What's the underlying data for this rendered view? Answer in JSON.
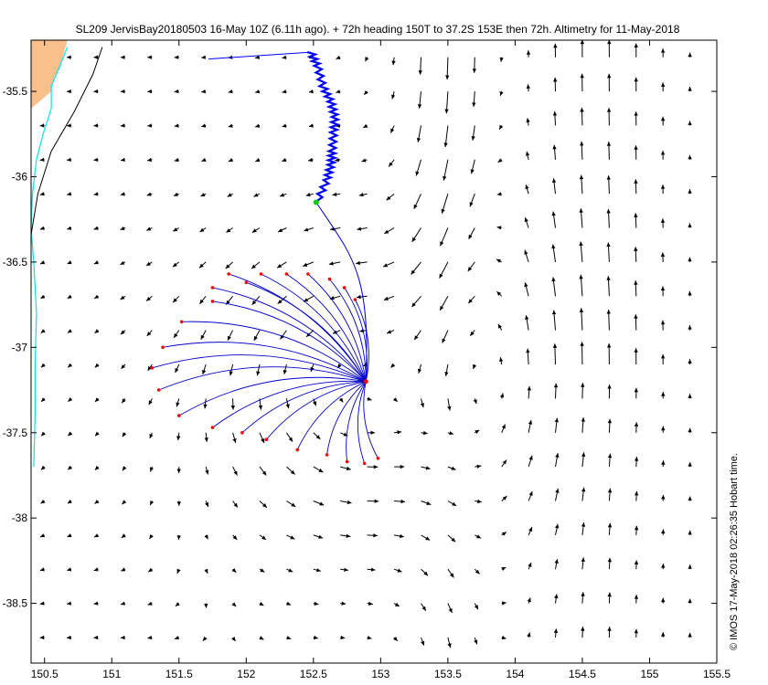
{
  "figure": {
    "title": "SL209 JervisBay20180503 16-May 10Z (6.11h ago). + 72h heading 150T to 37.2S 153E then 72h. Altimetry for 11-May-2018",
    "credit": "© IMOS 17-May-2018 02:26:35 Hobart time."
  },
  "chart_data": {
    "type": "map-vector-field",
    "title": "SL209 JervisBay20180503 16-May 10Z (6.11h ago). + 72h heading 150T to 37.2S 153E then 72h. Altimetry for 11-May-2018",
    "xlabel": "",
    "ylabel": "",
    "xlim": [
      150.4,
      155.5
    ],
    "ylim": [
      -38.85,
      -35.2
    ],
    "x_ticks": [
      150.5,
      151,
      151.5,
      152,
      152.5,
      153,
      153.5,
      154,
      154.5,
      155,
      155.5
    ],
    "x_tick_labels": [
      "150.5",
      "151",
      "151.5",
      "152",
      "152.5",
      "153",
      "153.5",
      "154",
      "154.5",
      "155",
      "155.5"
    ],
    "y_ticks": [
      -35.5,
      -36,
      -36.5,
      -37,
      -37.5,
      -38,
      -38.5
    ],
    "y_tick_labels": [
      "-35.5",
      "-36",
      "-36.5",
      "-37",
      "-37.5",
      "-38",
      "-38.5"
    ],
    "grid": false,
    "colors": {
      "land": "#f9c08c",
      "isobath_shallow": "#00e5ee",
      "isobath_deep": "#000000",
      "glider_track": "#0000ff",
      "glider_position": "#00cc00",
      "forecast_paths": "#0000cc",
      "forecast_endpoints": "#ff0000",
      "current_vectors": "#000000"
    },
    "glider_track": [
      [
        151.72,
        -35.31
      ],
      [
        152.48,
        -35.27
      ],
      [
        152.53,
        -35.35
      ],
      [
        152.57,
        -35.47
      ],
      [
        152.63,
        -35.56
      ],
      [
        152.66,
        -35.65
      ],
      [
        152.65,
        -35.74
      ],
      [
        152.64,
        -35.85
      ],
      [
        152.63,
        -35.93
      ],
      [
        152.6,
        -36.02
      ],
      [
        152.53,
        -36.14
      ]
    ],
    "glider_position": [
      152.52,
      -36.15
    ],
    "forecast_target": [
      152.89,
      -37.2
    ],
    "forecast_endpoints": [
      [
        152.81,
        -36.72
      ],
      [
        152.73,
        -36.65
      ],
      [
        152.62,
        -36.6
      ],
      [
        152.46,
        -36.57
      ],
      [
        152.3,
        -36.57
      ],
      [
        152.11,
        -36.57
      ],
      [
        152.0,
        -36.62
      ],
      [
        151.87,
        -36.57
      ],
      [
        151.75,
        -36.65
      ],
      [
        151.75,
        -36.73
      ],
      [
        151.52,
        -36.85
      ],
      [
        151.38,
        -37.0
      ],
      [
        151.3,
        -37.12
      ],
      [
        151.35,
        -37.25
      ],
      [
        151.5,
        -37.4
      ],
      [
        151.75,
        -37.47
      ],
      [
        151.97,
        -37.5
      ],
      [
        152.15,
        -37.54
      ],
      [
        152.38,
        -37.6
      ],
      [
        152.6,
        -37.63
      ],
      [
        152.75,
        -37.67
      ],
      [
        152.88,
        -37.68
      ],
      [
        152.98,
        -37.65
      ]
    ],
    "shallow_isobath": [
      [
        150.67,
        -35.24
      ],
      [
        150.62,
        -35.34
      ],
      [
        150.55,
        -35.47
      ],
      [
        150.55,
        -35.6
      ],
      [
        150.49,
        -35.75
      ],
      [
        150.44,
        -35.9
      ],
      [
        150.41,
        -36.1
      ],
      [
        150.4,
        -36.3
      ],
      [
        150.42,
        -36.5
      ],
      [
        150.44,
        -36.8
      ],
      [
        150.43,
        -37.1
      ],
      [
        150.43,
        -37.4
      ],
      [
        150.42,
        -37.7
      ]
    ],
    "deep_isobath": [
      [
        150.93,
        -35.24
      ],
      [
        150.86,
        -35.4
      ],
      [
        150.72,
        -35.62
      ],
      [
        150.55,
        -35.85
      ],
      [
        150.45,
        -36.1
      ],
      [
        150.4,
        -36.34
      ]
    ]
  }
}
